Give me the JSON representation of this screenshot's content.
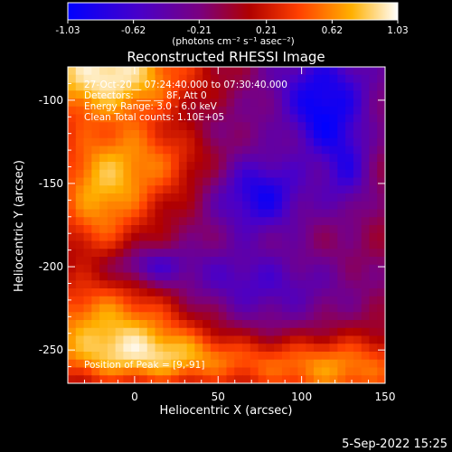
{
  "chart_data": {
    "type": "heatmap",
    "title": "Reconstructed RHESSI Image",
    "xlabel": "Heliocentric X (arcsec)",
    "ylabel": "Heliocentric Y (arcsec)",
    "xlim": [
      -40,
      150
    ],
    "ylim": [
      -270,
      -80
    ],
    "x_ticks": [
      0,
      50,
      100,
      150
    ],
    "y_ticks": [
      -100,
      -150,
      -200,
      -250
    ],
    "colorbar": {
      "ticks": [
        "-1.03",
        "-0.62",
        "-0.21",
        "0.21",
        "0.62",
        "1.03"
      ],
      "range": [
        -1.03,
        1.03
      ],
      "unit_label": "(photons cm⁻² s⁻¹ asec⁻²)",
      "colormap": [
        "#0000ff",
        "#4a00c8",
        "#7a0080",
        "#b00000",
        "#ff4000",
        "#ffb000",
        "#ffffff"
      ]
    },
    "annotations": {
      "time_range": "27-Oct-20__ 07:24:40.000 to 07:30:40.000",
      "detectors": "Detectors: ___ __ 8F, Att 0",
      "energy_range": "Energy Range: 3.0 - 6.0 keV",
      "clean_counts": "Clean    Total counts: 1.10E+05",
      "peak": "Position of Peak = [9,-91]"
    },
    "grid": false
  },
  "footer": {
    "date": "5-Sep-2022 15:25"
  }
}
